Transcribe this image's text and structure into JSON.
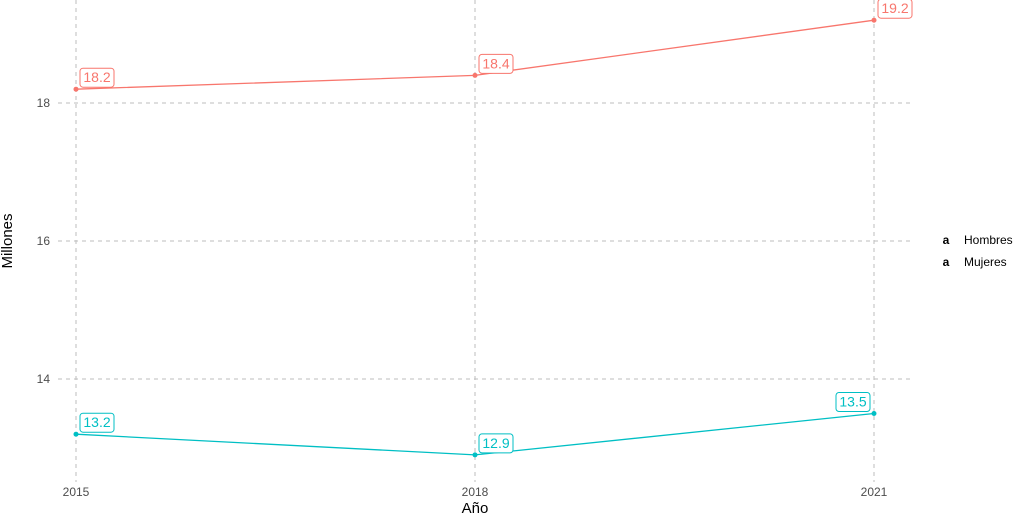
{
  "chart_data": {
    "type": "line",
    "title": "",
    "xlabel": "Año",
    "ylabel": "Millones",
    "x": [
      2015,
      2018,
      2021
    ],
    "x_ticks": [
      "2015",
      "2018",
      "2021"
    ],
    "y_ticks": [
      "14",
      "16",
      "18"
    ],
    "ylim": [
      12.8,
      19.7
    ],
    "grid": true,
    "legend_placement": "right",
    "series": [
      {
        "name": "Hombres",
        "values": [
          18.2,
          18.4,
          19.2
        ],
        "labels": [
          "18.2",
          "18.4",
          "19.2"
        ],
        "color": "#F8766D"
      },
      {
        "name": "Mujeres",
        "values": [
          13.2,
          12.9,
          13.5
        ],
        "labels": [
          "13.2",
          "12.9",
          "13.5"
        ],
        "color": "#00BFC4"
      }
    ],
    "legend_key_glyph": "a"
  }
}
